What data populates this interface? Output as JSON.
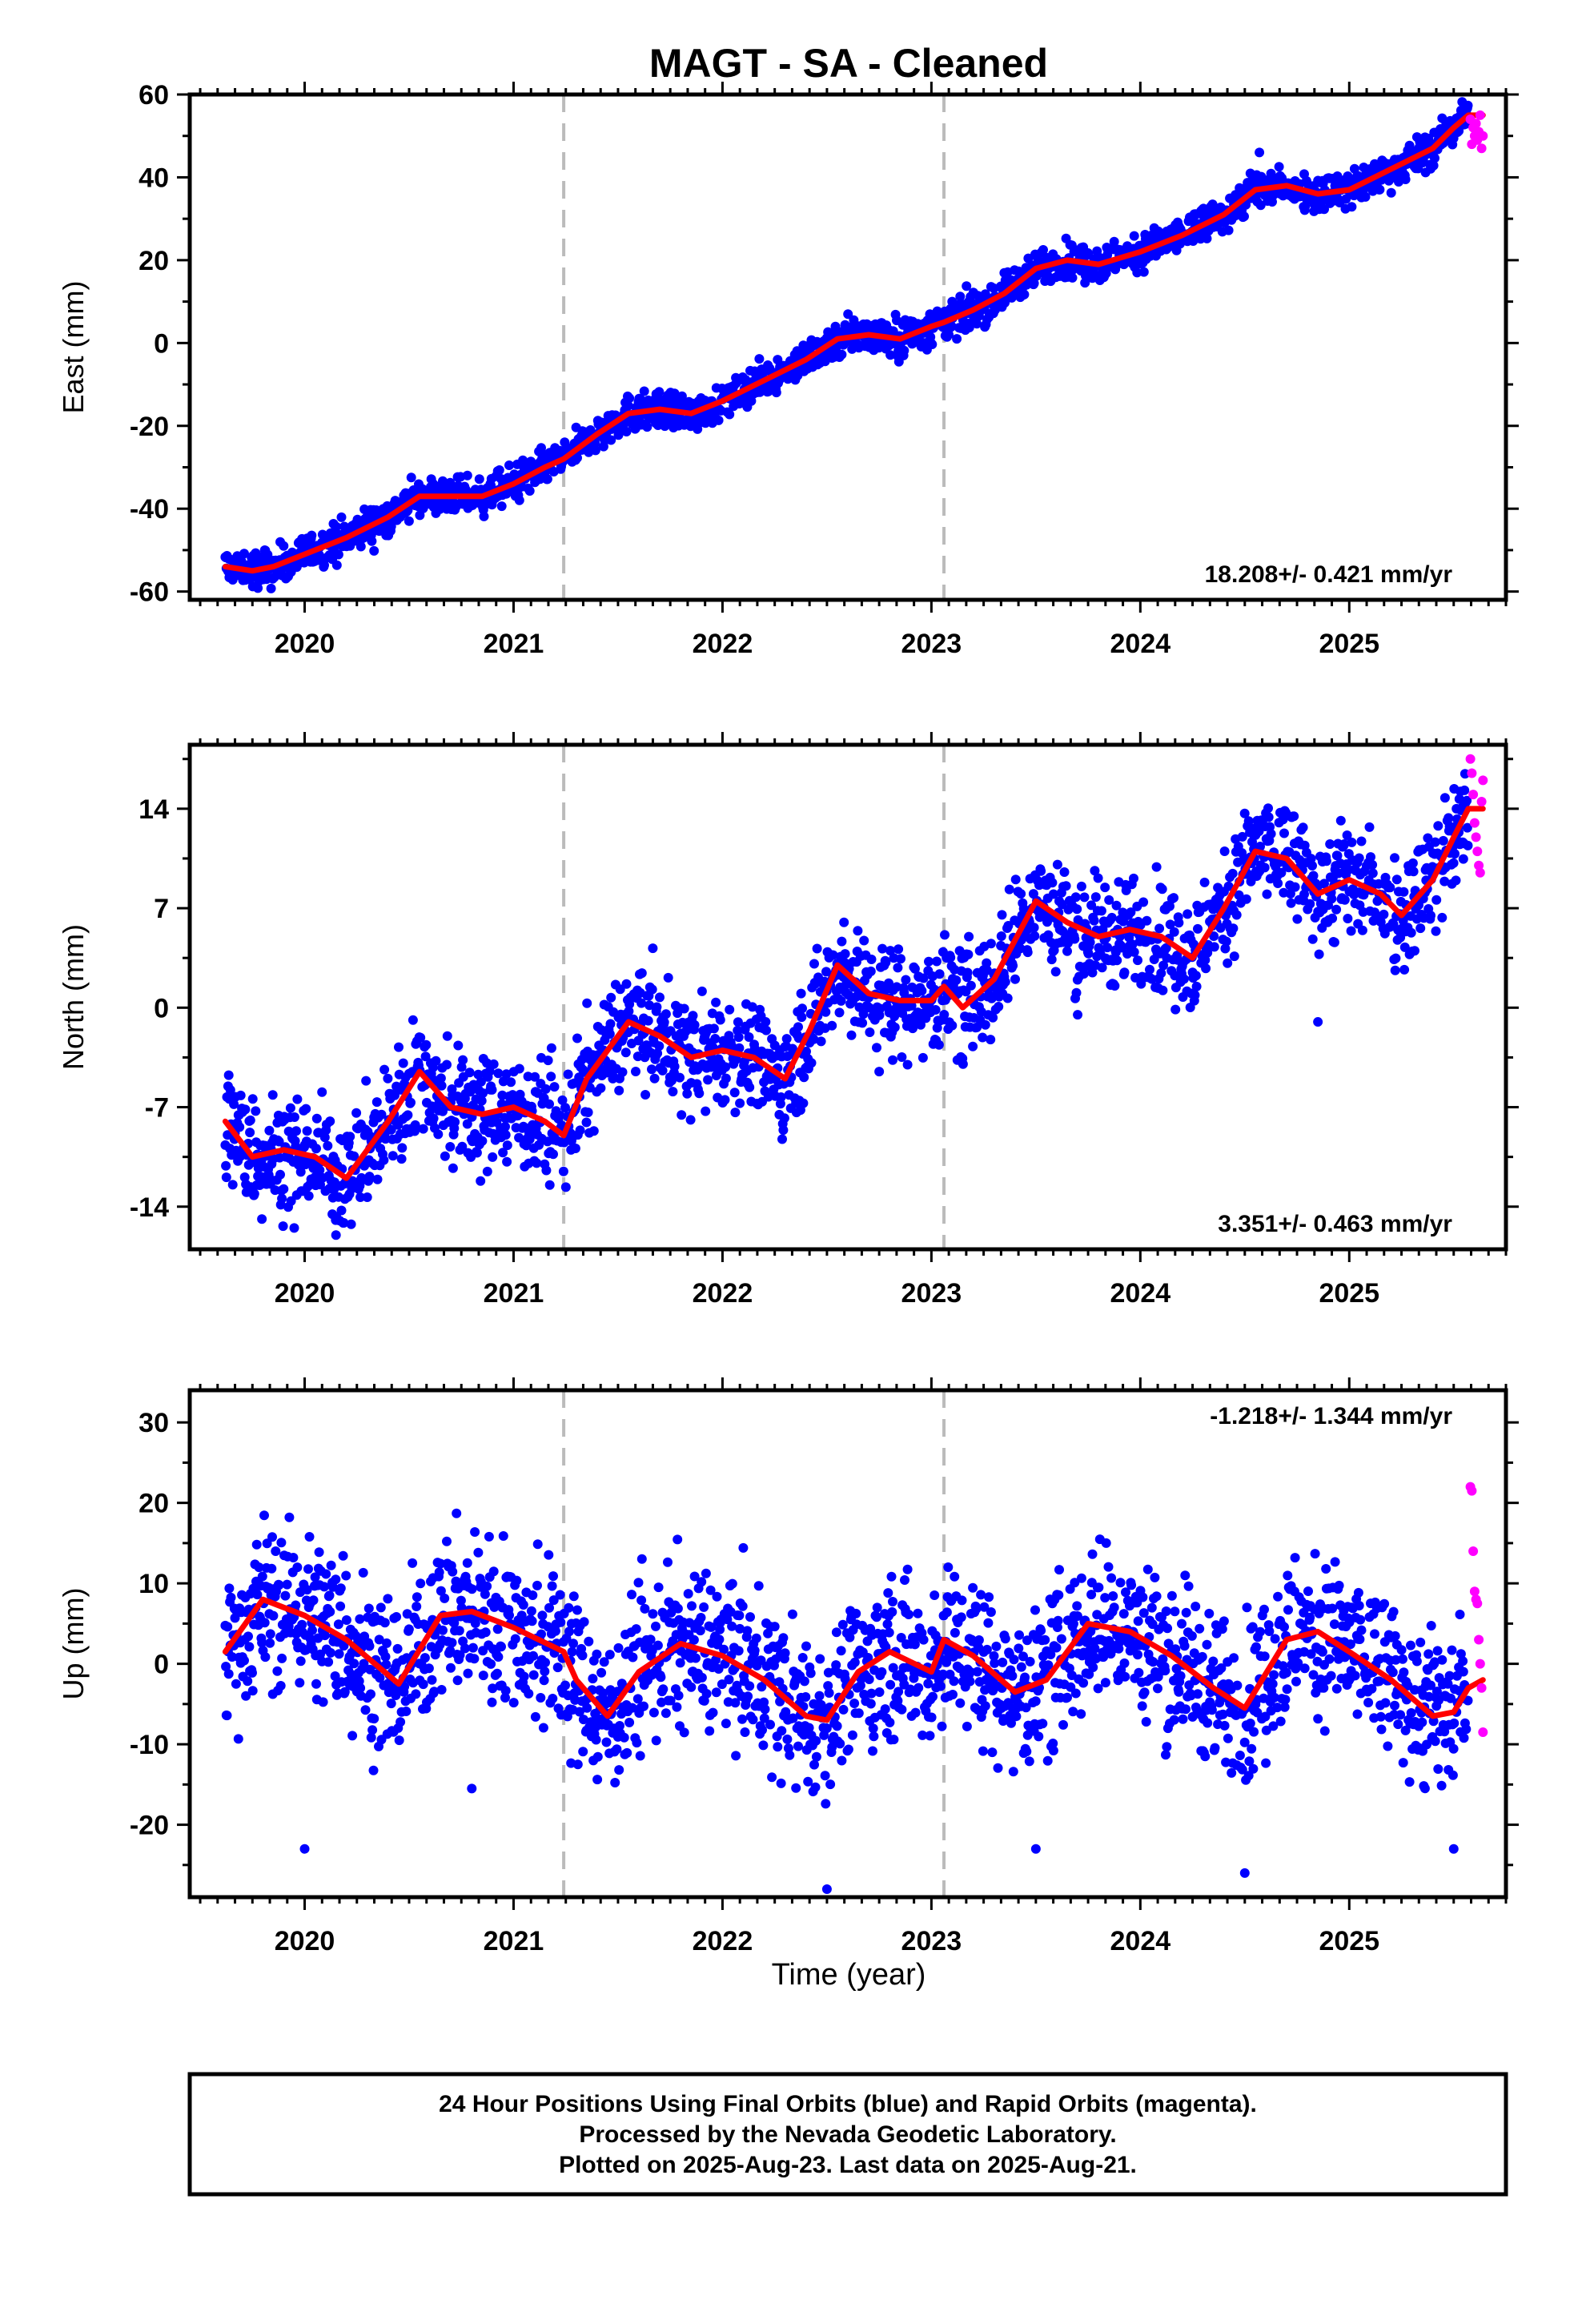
{
  "chart_data": {
    "type": "scatter",
    "title": "MAGT  - SA - Cleaned",
    "xlabel": "Time (year)",
    "x_ticks": [
      "2020",
      "2021",
      "2022",
      "2023",
      "2024",
      "2025"
    ],
    "xlim": [
      2019.45,
      2025.75
    ],
    "vertical_markers": [
      2021.24,
      2023.06
    ],
    "final_start": 2019.62,
    "final_end": 2025.57,
    "rapid_start": 2025.58,
    "rapid_end": 2025.64,
    "colors": {
      "final": "#0000ff",
      "rapid": "#ff00ff",
      "model": "#ff0000",
      "marker": "#bbbbbb"
    },
    "panels": [
      {
        "name": "east",
        "ylabel": "East (mm)",
        "ylim": [
          -62,
          60
        ],
        "y_ticks": [
          -60,
          -40,
          -20,
          0,
          20,
          40,
          60
        ],
        "rate_label": "18.208+/- 0.421 mm/yr",
        "rate_pos": "bottom-right",
        "model_x": [
          2019.62,
          2019.75,
          2019.85,
          2020.0,
          2020.2,
          2020.4,
          2020.55,
          2020.7,
          2020.85,
          2021.0,
          2021.15,
          2021.24,
          2021.4,
          2021.55,
          2021.7,
          2021.85,
          2022.0,
          2022.2,
          2022.4,
          2022.55,
          2022.7,
          2022.85,
          2023.0,
          2023.06,
          2023.2,
          2023.35,
          2023.5,
          2023.65,
          2023.8,
          2024.0,
          2024.2,
          2024.4,
          2024.55,
          2024.7,
          2024.85,
          2025.0,
          2025.2,
          2025.4,
          2025.5,
          2025.57,
          2025.64
        ],
        "model_y": [
          -54,
          -55,
          -54,
          -51,
          -47,
          -42,
          -37,
          -37,
          -37,
          -34,
          -30,
          -28,
          -22,
          -17,
          -16,
          -17,
          -14,
          -9,
          -4,
          1,
          2,
          1,
          4,
          5,
          8,
          12,
          18,
          20,
          19,
          22,
          26,
          31,
          37,
          38,
          36,
          37,
          42,
          47,
          52,
          55,
          55
        ],
        "noise": 2.2,
        "outliers": [
          [
            2024.57,
            46
          ]
        ],
        "rapid_y": [
          54,
          48,
          52,
          50,
          53,
          49,
          51,
          55,
          47,
          50
        ]
      },
      {
        "name": "north",
        "ylabel": "North (mm)",
        "ylim": [
          -17,
          18.5
        ],
        "y_ticks": [
          -14,
          -7,
          0,
          7,
          14
        ],
        "rate_label": "3.351+/- 0.463 mm/yr",
        "rate_pos": "bottom-right",
        "model_x": [
          2019.62,
          2019.75,
          2019.9,
          2020.05,
          2020.2,
          2020.3,
          2020.4,
          2020.55,
          2020.7,
          2020.85,
          2021.0,
          2021.15,
          2021.24,
          2021.35,
          2021.55,
          2021.7,
          2021.85,
          2022.0,
          2022.15,
          2022.3,
          2022.42,
          2022.55,
          2022.7,
          2022.85,
          2023.0,
          2023.06,
          2023.15,
          2023.3,
          2023.5,
          2023.65,
          2023.8,
          2023.95,
          2024.1,
          2024.25,
          2024.4,
          2024.55,
          2024.7,
          2024.85,
          2025.0,
          2025.15,
          2025.25,
          2025.4,
          2025.5,
          2025.57,
          2025.64
        ],
        "model_y": [
          -8,
          -10.5,
          -10,
          -10.5,
          -12,
          -10,
          -8,
          -4.5,
          -7,
          -7.5,
          -7,
          -8,
          -9,
          -5,
          -1,
          -2,
          -3.5,
          -3,
          -3.5,
          -5,
          -1.5,
          3,
          1,
          0.5,
          0.5,
          1.5,
          0,
          2,
          7.5,
          6,
          5,
          5.5,
          5,
          3.5,
          7,
          11,
          10.5,
          8,
          9,
          8,
          6.5,
          9,
          12,
          14,
          14
        ],
        "noise": 2.0,
        "outliers": [
          [
            2019.95,
            -15.5
          ],
          [
            2020.15,
            -16
          ],
          [
            2022.75,
            -4.5
          ],
          [
            2023.7,
            -0.5
          ],
          [
            2024.85,
            -1
          ]
        ],
        "rapid_y": [
          17.5,
          16.5,
          15,
          13,
          12,
          11,
          10,
          9.5,
          14.5,
          16
        ]
      },
      {
        "name": "up",
        "ylabel": "Up (mm)",
        "ylim": [
          -29,
          34
        ],
        "y_ticks": [
          -20,
          -10,
          0,
          10,
          20,
          30
        ],
        "rate_label": "-1.218+/- 1.344 mm/yr",
        "rate_pos": "top-right",
        "model_x": [
          2019.62,
          2019.8,
          2020.0,
          2020.2,
          2020.45,
          2020.65,
          2020.8,
          2021.0,
          2021.24,
          2021.3,
          2021.45,
          2021.6,
          2021.8,
          2022.0,
          2022.2,
          2022.4,
          2022.5,
          2022.65,
          2022.8,
          2023.0,
          2023.06,
          2023.2,
          2023.4,
          2023.55,
          2023.75,
          2023.95,
          2024.15,
          2024.35,
          2024.5,
          2024.7,
          2024.85,
          2025.0,
          2025.2,
          2025.4,
          2025.5,
          2025.57,
          2025.64
        ],
        "model_y": [
          1.5,
          8,
          6,
          3,
          -2.5,
          6,
          6.5,
          4.5,
          1.5,
          -2,
          -6.5,
          -1,
          2.5,
          1,
          -2,
          -6.5,
          -7,
          -1,
          1.5,
          -1,
          3,
          1,
          -3.5,
          -2,
          5,
          4,
          1,
          -3,
          -5.5,
          3,
          4,
          1.5,
          -2,
          -6.5,
          -6,
          -3,
          -2
        ],
        "noise": 5.0,
        "outliers": [
          [
            2020.0,
            -23
          ],
          [
            2022.5,
            -28
          ],
          [
            2024.5,
            -26
          ],
          [
            2025.5,
            -23
          ],
          [
            2023.5,
            -23
          ],
          [
            2020.8,
            -15.5
          ]
        ],
        "rapid_y": [
          22,
          21.5,
          14,
          9,
          8,
          7.5,
          3,
          0,
          -3,
          -8.5
        ]
      }
    ],
    "footer": [
      "24 Hour Positions Using Final Orbits (blue) and Rapid Orbits (magenta).",
      "Processed by the Nevada Geodetic Laboratory.",
      "Plotted on 2025-Aug-23. Last data on 2025-Aug-21."
    ]
  }
}
